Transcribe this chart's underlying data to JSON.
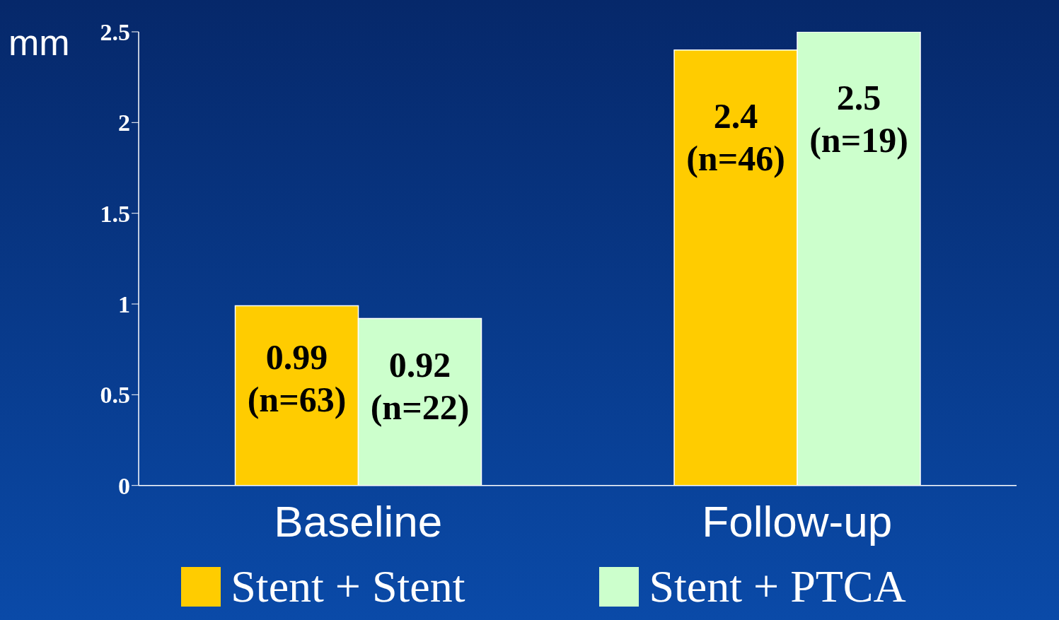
{
  "chart_data": {
    "type": "bar",
    "ylabel": "mm",
    "categories": [
      "Baseline",
      "Follow-up"
    ],
    "series": [
      {
        "name": "Stent + Stent",
        "color": "#ffcc00",
        "values": [
          0.99,
          2.4
        ],
        "value_labels": [
          "0.99\n(n=63)",
          "2.4\n(n=46)"
        ]
      },
      {
        "name": "Stent + PTCA",
        "color": "#ccffcc",
        "values": [
          0.92,
          2.5
        ],
        "value_labels": [
          "0.92\n(n=22)",
          "2.5\n(n=19)"
        ]
      }
    ],
    "ylim": [
      0,
      2.5
    ],
    "yticks": [
      0,
      0.5,
      1,
      1.5,
      2,
      2.5
    ],
    "grid": false,
    "legend": "bottom"
  }
}
